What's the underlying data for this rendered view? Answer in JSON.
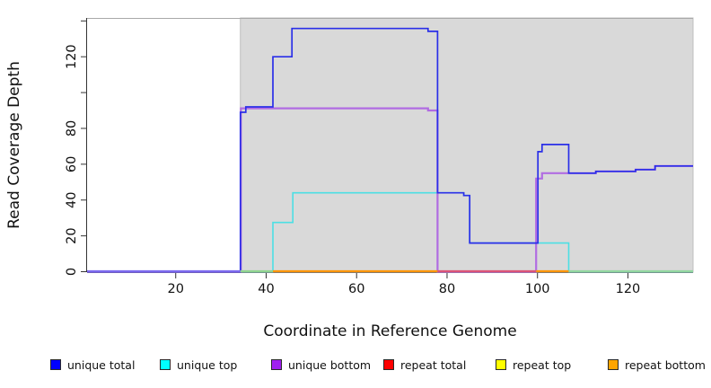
{
  "chart_data": {
    "type": "line",
    "subtype": "step-coverage-plot",
    "title": "",
    "xlabel": "Coordinate in Reference Genome",
    "ylabel": "Read Coverage Depth",
    "xlim": [
      0.4,
      134.4
    ],
    "ylim": [
      0,
      141.6
    ],
    "grid": false,
    "x_ticks": [
      20,
      40,
      60,
      80,
      100,
      120
    ],
    "y_ticks_labeled": [
      0,
      20,
      40,
      60,
      80,
      120
    ],
    "y_ticks_unlabeled": [
      100,
      140
    ],
    "shaded_region": {
      "x_from": 34.3,
      "x_to": 134.4,
      "fill": "#d9d9d9",
      "border": "#bdbdbd",
      "note": "repeat region highlight"
    },
    "series": [
      {
        "name": "unique total",
        "line_color": "#2a2fe8",
        "points": [
          [
            0.4,
            0
          ],
          [
            34.3,
            0
          ],
          [
            34.3,
            89
          ],
          [
            35.5,
            89
          ],
          [
            35.5,
            92
          ],
          [
            41.5,
            92
          ],
          [
            41.5,
            120
          ],
          [
            45.7,
            120
          ],
          [
            45.7,
            135.8
          ],
          [
            75.8,
            135.8
          ],
          [
            75.8,
            134.2
          ],
          [
            77.9,
            134.2
          ],
          [
            77.9,
            44
          ],
          [
            83.7,
            44
          ],
          [
            83.7,
            42.5
          ],
          [
            85,
            42.5
          ],
          [
            85,
            16
          ],
          [
            100.1,
            16
          ],
          [
            100.1,
            67
          ],
          [
            101,
            67
          ],
          [
            101,
            71
          ],
          [
            106.9,
            71
          ],
          [
            106.9,
            55
          ],
          [
            112.9,
            55
          ],
          [
            112.9,
            56
          ],
          [
            121.7,
            56
          ],
          [
            121.7,
            57
          ],
          [
            126,
            57
          ],
          [
            126,
            59
          ],
          [
            134.4,
            59
          ]
        ]
      },
      {
        "name": "unique top",
        "line_color": "#4cdfe4",
        "points": [
          [
            0.4,
            0
          ],
          [
            41.5,
            0
          ],
          [
            41.5,
            27.5
          ],
          [
            45.9,
            27.5
          ],
          [
            45.9,
            44
          ],
          [
            83.7,
            44
          ],
          [
            83.7,
            42.5
          ],
          [
            85,
            42.5
          ],
          [
            85,
            16
          ],
          [
            106.9,
            16
          ],
          [
            106.9,
            0
          ],
          [
            134.4,
            0
          ]
        ]
      },
      {
        "name": "unique bottom",
        "line_color": "#b16ce2",
        "points": [
          [
            0.4,
            0
          ],
          [
            34.4,
            0
          ],
          [
            34.4,
            91.2
          ],
          [
            75.8,
            91.2
          ],
          [
            75.8,
            90
          ],
          [
            77.9,
            90
          ],
          [
            77.9,
            0
          ],
          [
            99.7,
            0
          ],
          [
            99.7,
            52
          ],
          [
            101,
            52
          ],
          [
            101,
            55
          ],
          [
            112.9,
            55
          ],
          [
            112.9,
            56
          ],
          [
            121.7,
            56
          ],
          [
            121.7,
            57
          ],
          [
            126,
            57
          ],
          [
            126,
            59
          ],
          [
            134.4,
            59
          ]
        ]
      },
      {
        "name": "repeat total",
        "line_color": "#dc5377",
        "points": [
          [
            34.3,
            0
          ],
          [
            134.4,
            0
          ]
        ]
      },
      {
        "name": "repeat top",
        "line_color": "#f0e545",
        "points": [
          [
            34.3,
            0
          ],
          [
            134.4,
            0
          ]
        ]
      },
      {
        "name": "repeat bottom",
        "line_color": "#ff9500",
        "points": [
          [
            41.5,
            0
          ],
          [
            106.9,
            0
          ]
        ]
      }
    ],
    "baseline_visible_segments": [
      {
        "from": 0.4,
        "to": 34.3,
        "color": "#7b68ee"
      },
      {
        "from": 34.3,
        "to": 41.5,
        "color": "#8fd48f"
      },
      {
        "from": 41.5,
        "to": 77.9,
        "color": "#ff9500"
      },
      {
        "from": 77.9,
        "to": 99.7,
        "color": "#dc5377"
      },
      {
        "from": 99.7,
        "to": 106.9,
        "color": "#ff9500"
      },
      {
        "from": 106.9,
        "to": 134.4,
        "color": "#92d7a0"
      }
    ],
    "legend": {
      "position": "bottom",
      "items": [
        {
          "label": "unique total",
          "color": "#0000FF"
        },
        {
          "label": "unique top",
          "color": "#00FFFF"
        },
        {
          "label": "unique bottom",
          "color": "#A020F0"
        },
        {
          "label": "repeat total",
          "color": "#FF0000"
        },
        {
          "label": "repeat top",
          "color": "#FFFF00"
        },
        {
          "label": "repeat bottom",
          "color": "#FFA500"
        }
      ]
    }
  }
}
